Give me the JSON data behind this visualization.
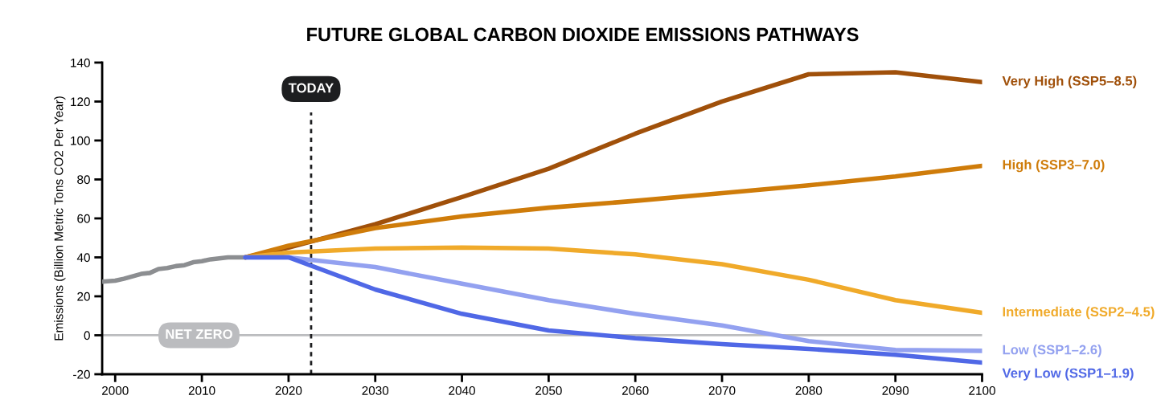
{
  "chart_data": {
    "type": "line",
    "title": "FUTURE GLOBAL CARBON DIOXIDE EMISSIONS PATHWAYS",
    "ylabel": "Emissions (Billion Metric Tons CO2 Per Year)",
    "xlim": [
      1998.5,
      2100
    ],
    "xticks": [
      2000,
      2010,
      2020,
      2030,
      2040,
      2050,
      2060,
      2070,
      2080,
      2090,
      2100
    ],
    "ylim": [
      -20,
      140
    ],
    "yticks": [
      -20,
      0,
      20,
      40,
      60,
      80,
      100,
      120,
      140
    ],
    "grid": false,
    "legend": false,
    "marker": "none",
    "line_style": "solid",
    "ref_lines": [
      {
        "axis": "y",
        "value": 0,
        "label": "NET ZERO",
        "color": "#bbbcbf",
        "line_style": "solid"
      },
      {
        "axis": "x",
        "value": 2022.6,
        "label": "TODAY",
        "color": "#1d1e20",
        "line_style": "dotted"
      }
    ],
    "series": [
      {
        "color": "#8c8e91",
        "x": [
          1998.5,
          2000,
          2001,
          2003,
          2004,
          2005,
          2006,
          2007,
          2008,
          2009,
          2010,
          2011,
          2012,
          2013,
          2015
        ],
        "values": [
          27.5,
          28,
          29,
          31.5,
          32,
          34,
          34.5,
          35.5,
          36,
          37.5,
          38,
          39,
          39.5,
          40,
          40
        ]
      },
      {
        "name": "Very High (SSP5–8.5)",
        "color": "#a0500a",
        "x": [
          2015,
          2020,
          2030,
          2040,
          2050,
          2060,
          2070,
          2080,
          2090,
          2100
        ],
        "values": [
          40,
          45,
          57,
          71,
          85.5,
          103.5,
          120,
          134,
          135,
          130
        ]
      },
      {
        "name": "High (SSP3–7.0)",
        "color": "#cf7c0a",
        "x": [
          2015,
          2020,
          2030,
          2040,
          2050,
          2060,
          2070,
          2080,
          2090,
          2100
        ],
        "values": [
          40,
          46,
          55,
          61,
          65.5,
          69,
          73,
          77,
          81.5,
          87
        ]
      },
      {
        "name": "Intermediate (SSP2–4.5)",
        "color": "#f0aa2a",
        "x": [
          2015,
          2020,
          2030,
          2040,
          2050,
          2060,
          2070,
          2080,
          2090,
          2100
        ],
        "values": [
          40,
          42.5,
          44.5,
          45,
          44.5,
          41.5,
          36.5,
          28.5,
          18,
          11.5
        ]
      },
      {
        "name": "Low (SSP1–2.6)",
        "color": "#93a1f0",
        "x": [
          2015,
          2020,
          2030,
          2040,
          2050,
          2060,
          2070,
          2080,
          2090,
          2100
        ],
        "values": [
          40,
          40,
          35,
          26.5,
          18,
          11,
          5,
          -3,
          -7.5,
          -8
        ]
      },
      {
        "name": "Very Low (SSP1–1.9)",
        "color": "#5068e6",
        "x": [
          2015,
          2020,
          2030,
          2040,
          2050,
          2060,
          2070,
          2080,
          2090,
          2100
        ],
        "values": [
          40,
          40,
          23.5,
          11,
          2.5,
          -1.5,
          -4.5,
          -7,
          -10,
          -14
        ]
      }
    ]
  }
}
